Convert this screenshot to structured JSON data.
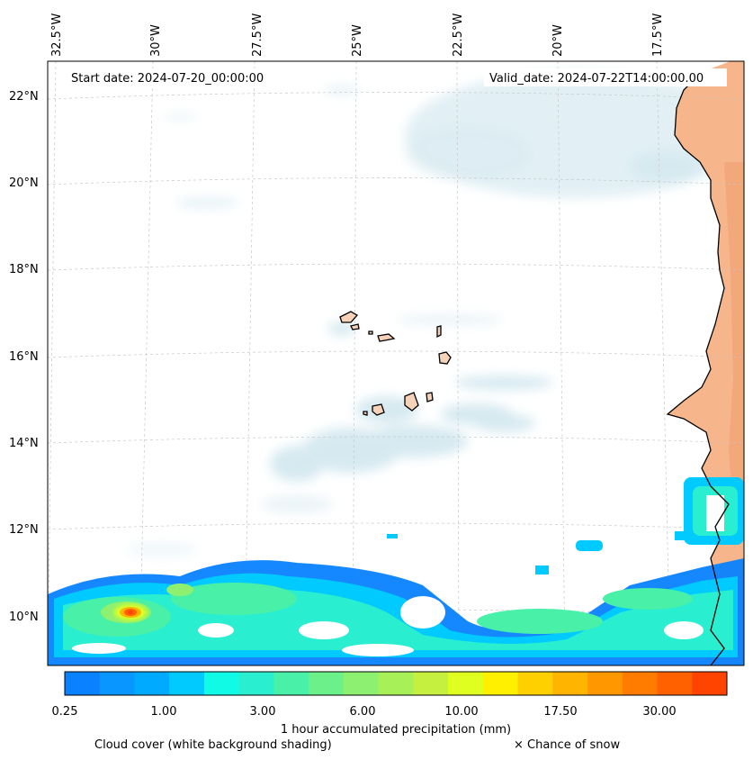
{
  "header": {
    "start_label": "Start date: 2024-07-20_00:00:00",
    "valid_label": "Valid_date: 2024-07-22T14:00:00.00"
  },
  "axes": {
    "lon_labels": [
      "32.5°W",
      "30°W",
      "27.5°W",
      "25°W",
      "22.5°W",
      "20°W",
      "17.5°W"
    ],
    "lat_labels": [
      "22°N",
      "20°N",
      "18°N",
      "16°N",
      "14°N",
      "12°N",
      "10°N"
    ]
  },
  "colorbar": {
    "tick_labels": [
      "0.25",
      "1.00",
      "3.00",
      "6.00",
      "10.00",
      "17.50",
      "30.00"
    ],
    "colors": [
      "#0a82ff",
      "#0a96ff",
      "#00aaff",
      "#00caff",
      "#10fae6",
      "#2aeed0",
      "#48f0a8",
      "#6cf08a",
      "#8ef070",
      "#a8f058",
      "#c6f040",
      "#deff20",
      "#fff000",
      "#ffd000",
      "#ffb400",
      "#ff9800",
      "#ff7c00",
      "#ff6000",
      "#ff4400"
    ],
    "label": "1 hour accumulated precipitation (mm)"
  },
  "footer": {
    "cloud_note": "Cloud cover (white background shading)",
    "snow_note": "× Chance of snow"
  },
  "colors": {
    "land": "#f6b58a",
    "cloud": "#cfe6ee",
    "coast": "#000000",
    "grid": "#c8c8c8"
  }
}
